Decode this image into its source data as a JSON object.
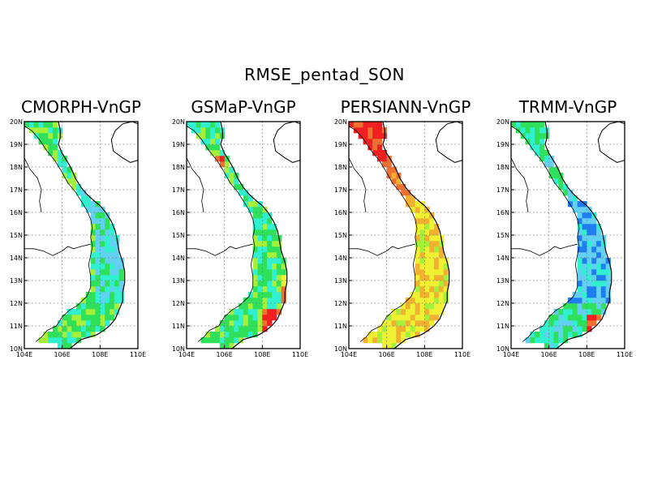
{
  "figure": {
    "title": "RMSE_pentad_SON",
    "lon_labels": [
      "104E",
      "106E",
      "108E",
      "110E"
    ],
    "lat_labels": [
      "10N",
      "11N",
      "12N",
      "13N",
      "14N",
      "15N",
      "16N",
      "17N",
      "18N",
      "19N",
      "20N"
    ],
    "lon_range": [
      104,
      110
    ],
    "lat_range": [
      10,
      20
    ],
    "grid": "dotted",
    "colors": {
      "light_blue": "#62d0f0",
      "blue": "#1e7ef0",
      "cyan": "#30f0d0",
      "green": "#2ee05a",
      "yellow_green": "#a4f03a",
      "yellow": "#f0f032",
      "orange": "#f0b030",
      "orange_red": "#f07030",
      "red": "#f02020"
    }
  },
  "panels": [
    {
      "title": "CMORPH-VnGP",
      "tone": "green"
    },
    {
      "title": "GSMaP-VnGP",
      "tone": "green_red"
    },
    {
      "title": "PERSIANN-VnGP",
      "tone": "warm"
    },
    {
      "title": "TRMM-VnGP",
      "tone": "cool"
    }
  ]
}
